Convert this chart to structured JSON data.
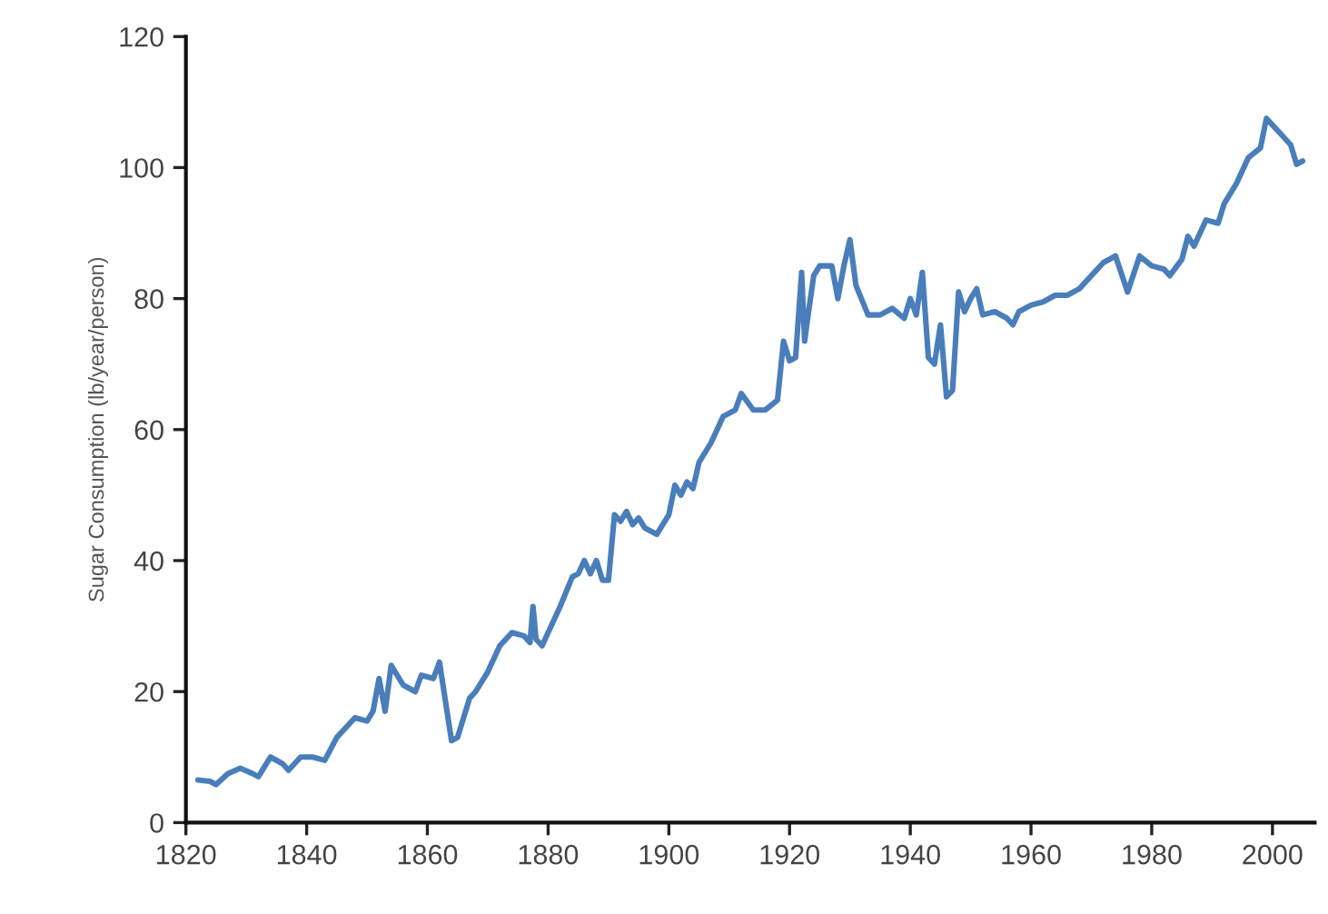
{
  "chart_data": {
    "type": "line",
    "ylabel": "Sugar Consumption (lb/year/person)",
    "x": [
      1822,
      1824,
      1825,
      1827,
      1829,
      1831,
      1832,
      1834,
      1836,
      1837,
      1839,
      1841,
      1843,
      1845,
      1848,
      1850,
      1851,
      1852,
      1853,
      1854,
      1856,
      1858,
      1859,
      1861,
      1862,
      1864,
      1865,
      1867,
      1868,
      1870,
      1872,
      1874,
      1876,
      1877,
      1877.5,
      1878,
      1879,
      1880,
      1882,
      1884,
      1885,
      1886,
      1887,
      1888,
      1889,
      1890,
      1891,
      1892,
      1893,
      1894,
      1895,
      1896,
      1898,
      1900,
      1901,
      1902,
      1903,
      1904,
      1905,
      1907,
      1909,
      1911,
      1912,
      1914,
      1916,
      1918,
      1919,
      1920,
      1921,
      1922,
      1922.5,
      1923,
      1924,
      1925,
      1927,
      1928,
      1929,
      1930,
      1931,
      1933,
      1935,
      1937,
      1939,
      1940,
      1941,
      1942,
      1943,
      1944,
      1945,
      1946,
      1947,
      1948,
      1949,
      1950,
      1951,
      1952,
      1954,
      1956,
      1957,
      1958,
      1960,
      1962,
      1964,
      1966,
      1968,
      1970,
      1972,
      1974,
      1976,
      1978,
      1980,
      1982,
      1983,
      1985,
      1986,
      1987,
      1989,
      1991,
      1992,
      1994,
      1996,
      1998,
      1999,
      2001,
      2003,
      2004,
      2005
    ],
    "series": [
      {
        "color": "#4a7ebb",
        "values": [
          6.5,
          6.3,
          5.8,
          7.5,
          8.3,
          7.5,
          7,
          10,
          9,
          8,
          10,
          10,
          9.5,
          13,
          16,
          15.5,
          17,
          22,
          17,
          24,
          21,
          20,
          22.5,
          22,
          24.5,
          12.5,
          13,
          19,
          20,
          23,
          27,
          29,
          28.5,
          27.5,
          33,
          28,
          27,
          29,
          33,
          37.5,
          38,
          40,
          38,
          40,
          37,
          37,
          47,
          46,
          47.5,
          45.5,
          46.5,
          45,
          44,
          47,
          51.5,
          50,
          52,
          51,
          55,
          58,
          62,
          63,
          65.5,
          63,
          63,
          64.5,
          73.5,
          70.5,
          71,
          84,
          73.5,
          77,
          83.5,
          85,
          85,
          80,
          85,
          89,
          82,
          77.5,
          77.5,
          78.5,
          77,
          80,
          77.5,
          84,
          71,
          70,
          76,
          65,
          66,
          81,
          78,
          80,
          81.5,
          77.5,
          78,
          77,
          76,
          78,
          79,
          79.5,
          80.5,
          80.5,
          81.5,
          83.5,
          85.5,
          86.5,
          81,
          86.5,
          85,
          84.5,
          83.5,
          86,
          89.5,
          88,
          92,
          91.5,
          94.5,
          97.5,
          101.5,
          103,
          107.5,
          105.5,
          103.5,
          100.5,
          101
        ]
      }
    ],
    "xlim": [
      1820,
      2007
    ],
    "xticks": [
      1820,
      1840,
      1860,
      1880,
      1900,
      1920,
      1940,
      1960,
      1980,
      2000
    ],
    "ylim": [
      0,
      120
    ],
    "yticks": [
      0,
      20,
      40,
      60,
      80,
      100,
      120
    ],
    "grid": false,
    "line_style": "solid",
    "marker": "none"
  }
}
